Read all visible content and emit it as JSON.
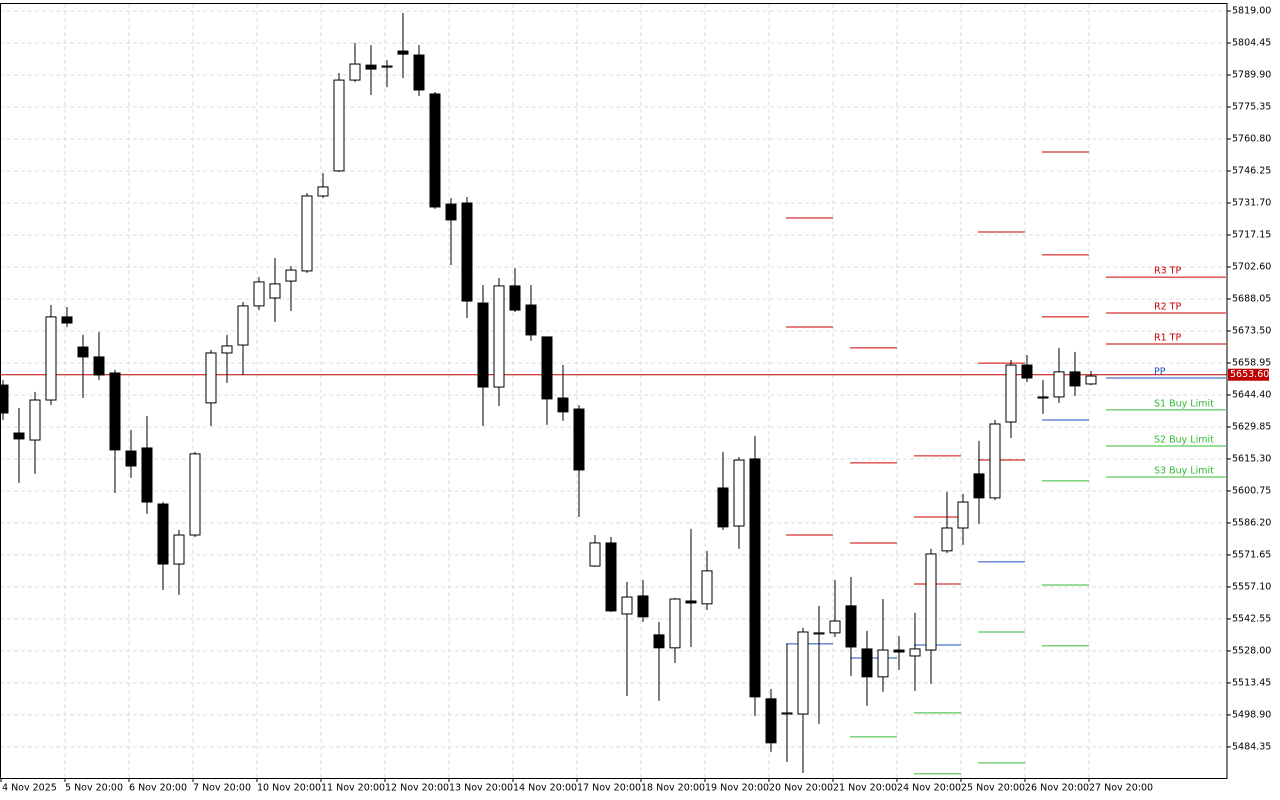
{
  "chart_data": {
    "type": "candlestick",
    "categories": [
      "4 Nov 2025",
      null,
      null,
      null,
      "5 Nov 20:00",
      null,
      null,
      null,
      "6 Nov 20:00",
      null,
      null,
      null,
      "7 Nov 20:00",
      null,
      null,
      null,
      "10 Nov 20:00",
      null,
      null,
      null,
      "11 Nov 20:00",
      null,
      null,
      null,
      "12 Nov 20:00",
      null,
      null,
      null,
      "13 Nov 20:00",
      null,
      null,
      null,
      "14 Nov 20:00",
      null,
      null,
      null,
      "17 Nov 20:00",
      null,
      null,
      null,
      "18 Nov 20:00",
      null,
      null,
      null,
      "19 Nov 20:00",
      null,
      null,
      null,
      "20 Nov 20:00",
      null,
      null,
      null,
      "21 Nov 20:00",
      null,
      null,
      null,
      "24 Nov 20:00",
      null,
      null,
      null,
      "25 Nov 20:00",
      null,
      null,
      null,
      "26 Nov 20:00",
      null,
      null,
      null,
      "27 Nov 20:00"
    ],
    "open": [
      5648.9,
      5627.1,
      5623.9,
      5642.1,
      5679.9,
      5666.2,
      5661.7,
      5654.4,
      5618.9,
      5620.3,
      5594.8,
      5567.5,
      5580.7,
      5640.8,
      5663.5,
      5667.1,
      5684.9,
      5688.5,
      5696.2,
      5700.8,
      5734.9,
      5746.3,
      5787.6,
      5794.4,
      5793.5,
      5800.8,
      5799.0,
      5781.3,
      5731.2,
      5731.7,
      5686.2,
      5648.0,
      5694.0,
      5685.3,
      5670.8,
      5643.0,
      5638.0,
      5566.6,
      5577.1,
      5544.8,
      5553.0,
      5535.3,
      5529.4,
      5550.7,
      5549.4,
      5602.1,
      5584.8,
      5615.3,
      5506.2,
      5499.3,
      5499.3,
      5535.7,
      5536.2,
      5548.5,
      5528.9,
      5516.2,
      5528.4,
      5525.7,
      5528.4,
      5573.5,
      5583.9,
      5608.5,
      5597.6,
      5632.1,
      5658.0,
      5643.5,
      5643.5,
      5654.9,
      5649.4
    ],
    "high": [
      5651.2,
      5638.5,
      5645.8,
      5685.3,
      5684.4,
      5671.7,
      5673.0,
      5655.8,
      5628.5,
      5634.8,
      5595.7,
      5583.0,
      5618.5,
      5664.9,
      5671.7,
      5686.7,
      5698.0,
      5706.7,
      5703.0,
      5736.2,
      5745.3,
      5790.8,
      5804.5,
      5803.5,
      5796.7,
      5818.1,
      5803.5,
      5782.2,
      5734.0,
      5734.4,
      5694.4,
      5697.6,
      5702.1,
      5694.4,
      5670.8,
      5658.0,
      5639.8,
      5580.7,
      5579.8,
      5559.4,
      5560.3,
      5541.2,
      5552.1,
      5583.5,
      5573.5,
      5618.5,
      5616.2,
      5625.8,
      5510.7,
      5531.2,
      5538.5,
      5548.5,
      5560.3,
      5561.6,
      5537.1,
      5551.6,
      5534.8,
      5545.3,
      5574.4,
      5600.3,
      5599.4,
      5623.5,
      5633.0,
      5660.3,
      5662.6,
      5651.2,
      5665.8,
      5664.0,
      5655.3
    ],
    "low": [
      5633.0,
      5604.4,
      5608.5,
      5639.8,
      5675.3,
      5643.0,
      5651.2,
      5599.8,
      5606.7,
      5590.3,
      5555.7,
      5553.5,
      5579.8,
      5630.3,
      5649.9,
      5653.5,
      5683.0,
      5677.6,
      5682.6,
      5699.9,
      5734.0,
      5745.8,
      5786.7,
      5780.8,
      5784.4,
      5788.5,
      5780.3,
      5729.0,
      5703.5,
      5679.4,
      5630.3,
      5639.4,
      5682.1,
      5669.0,
      5630.8,
      5632.6,
      5588.9,
      5566.2,
      5545.7,
      5507.5,
      5541.2,
      5505.3,
      5522.5,
      5529.8,
      5546.6,
      5583.0,
      5574.4,
      5498.4,
      5482.1,
      5477.5,
      5472.5,
      5494.8,
      5534.4,
      5516.6,
      5503.0,
      5509.4,
      5519.4,
      5509.8,
      5513.0,
      5572.5,
      5576.2,
      5585.7,
      5596.6,
      5624.8,
      5650.3,
      5635.8,
      5640.8,
      5643.9,
      5648.9
    ],
    "close": [
      5636.2,
      5624.4,
      5642.1,
      5679.9,
      5677.1,
      5661.7,
      5653.5,
      5619.4,
      5612.1,
      5595.7,
      5567.5,
      5580.7,
      5617.6,
      5663.5,
      5666.7,
      5684.9,
      5695.8,
      5694.9,
      5701.2,
      5734.9,
      5739.0,
      5787.6,
      5794.9,
      5792.6,
      5794.0,
      5799.4,
      5783.1,
      5729.9,
      5724.0,
      5687.1,
      5648.0,
      5694.0,
      5683.0,
      5671.7,
      5642.6,
      5636.7,
      5610.3,
      5577.1,
      5546.2,
      5552.5,
      5543.5,
      5529.4,
      5551.6,
      5549.8,
      5564.4,
      5584.4,
      5614.8,
      5507.1,
      5486.2,
      5499.8,
      5536.6,
      5536.2,
      5541.6,
      5529.8,
      5516.2,
      5528.4,
      5527.5,
      5528.9,
      5572.1,
      5583.9,
      5595.7,
      5597.6,
      5631.2,
      5658.0,
      5652.1,
      5643.0,
      5654.9,
      5648.5,
      5653.0
    ],
    "up_color": "#ffffff",
    "down_color": "#000000",
    "ylim": [
      5470.2,
      5822.2
    ],
    "yticks": [
      {
        "value": 5819.0,
        "label": "5819.00"
      },
      5804.45,
      {
        "value": 5789.9,
        "label": "5789.90"
      },
      5775.35,
      {
        "value": 5760.8,
        "label": "5760.80"
      },
      5746.25,
      {
        "value": 5731.7,
        "label": "5731.70"
      },
      5717.15,
      {
        "value": 5702.6,
        "label": "5702.60"
      },
      5688.05,
      {
        "value": 5673.5,
        "label": "5673.50"
      },
      5658.95,
      {
        "value": 5644.4,
        "label": "5644.40"
      },
      5629.85,
      {
        "value": 5615.3,
        "label": "5615.30"
      },
      5600.75,
      {
        "value": 5586.2,
        "label": "5586.20"
      },
      5571.65,
      {
        "value": 5557.1,
        "label": "5557.10"
      },
      5542.55,
      {
        "value": 5528.0,
        "label": "5528.00"
      },
      5513.45,
      {
        "value": 5498.9,
        "label": "5498.90"
      },
      5484.35
    ],
    "grid": true,
    "current_price": {
      "value": 5653.6,
      "label": "5653.60",
      "color": "#c00000"
    },
    "pivot_groups": [
      {
        "levels": [
          {
            "price": 5724.9,
            "color": "#cc0000"
          },
          {
            "price": 5675.3,
            "color": "#cc0000"
          },
          {
            "price": 5580.7,
            "color": "#cc0000"
          },
          {
            "price": 5531.2,
            "color": "#1f4fbf"
          }
        ]
      },
      {
        "levels": [
          {
            "price": 5665.8,
            "color": "#cc0000"
          },
          {
            "price": 5613.5,
            "color": "#cc0000"
          },
          {
            "price": 5577.1,
            "color": "#cc0000"
          },
          {
            "price": 5524.8,
            "color": "#1f4fbf"
          },
          {
            "price": 5488.9,
            "color": "#33bb33"
          }
        ]
      },
      {
        "levels": [
          {
            "price": 5616.7,
            "color": "#cc0000"
          },
          {
            "price": 5588.9,
            "color": "#cc0000"
          },
          {
            "price": 5558.4,
            "color": "#cc0000"
          },
          {
            "price": 5530.7,
            "color": "#1f4fbf"
          },
          {
            "price": 5499.8,
            "color": "#33bb33"
          },
          {
            "price": 5472.1,
            "color": "#33bb33"
          }
        ]
      },
      {
        "levels": [
          {
            "price": 5718.5,
            "color": "#cc0000"
          },
          {
            "price": 5658.9,
            "color": "#cc0000"
          },
          {
            "price": 5614.8,
            "color": "#cc0000"
          },
          {
            "price": 5568.5,
            "color": "#1f4fbf"
          },
          {
            "price": 5536.6,
            "color": "#33bb33"
          },
          {
            "price": 5477.1,
            "color": "#33bb33"
          }
        ]
      },
      {
        "levels": [
          {
            "price": 5754.9,
            "color": "#cc0000"
          },
          {
            "price": 5708.1,
            "color": "#cc0000"
          },
          {
            "price": 5679.9,
            "color": "#cc0000"
          },
          {
            "price": 5633.0,
            "color": "#1f4fbf"
          },
          {
            "price": 5605.3,
            "color": "#33bb33"
          },
          {
            "price": 5558.0,
            "color": "#33bb33"
          },
          {
            "price": 5530.3,
            "color": "#33bb33"
          }
        ]
      },
      {
        "levels": [
          {
            "price": 5698.0,
            "color": "#cc0000",
            "label": "R3 TP"
          },
          {
            "price": 5681.7,
            "color": "#cc0000",
            "label": "R2 TP"
          },
          {
            "price": 5667.6,
            "color": "#cc0000",
            "label": "R1 TP"
          },
          {
            "price": 5652.1,
            "color": "#1f4fbf",
            "label": "PP"
          },
          {
            "price": 5637.6,
            "color": "#33bb33",
            "label": "S1 Buy Limit"
          },
          {
            "price": 5621.2,
            "color": "#33bb33",
            "label": "S2 Buy Limit"
          },
          {
            "price": 5607.1,
            "color": "#33bb33",
            "label": "S3 Buy Limit"
          }
        ]
      }
    ]
  }
}
